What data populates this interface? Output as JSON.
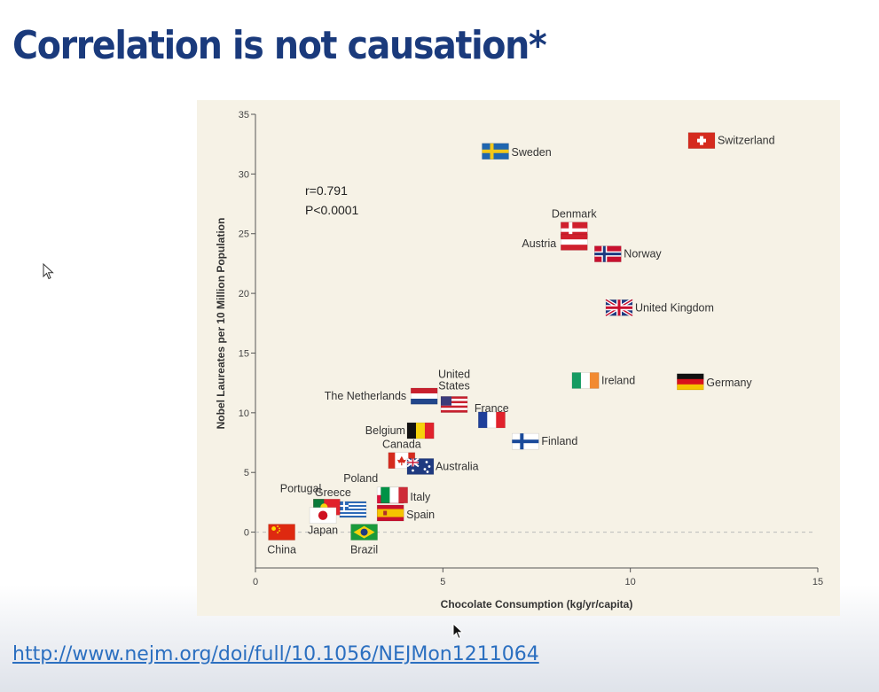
{
  "slide": {
    "title": "Correlation is not causation*",
    "link": "http://www.nejm.org/doi/full/10.1056/NEJMon1211064"
  },
  "chart_data": {
    "type": "scatter",
    "title": "",
    "xlabel": "Chocolate Consumption (kg/yr/capita)",
    "ylabel": "Nobel Laureates per 10 Million Population",
    "xlim": [
      0,
      15
    ],
    "ylim": [
      -3,
      35
    ],
    "xticks": [
      0,
      5,
      10,
      15
    ],
    "yticks": [
      0,
      5,
      10,
      15,
      20,
      25,
      30,
      35
    ],
    "reference_line_y": 0,
    "annotation": {
      "r": "r=0.791",
      "p": "P<0.0001"
    },
    "points": [
      {
        "country": "Sweden",
        "x": 6.4,
        "y": 31.9,
        "flag": "sweden"
      },
      {
        "country": "Switzerland",
        "x": 11.9,
        "y": 32.8,
        "flag": "switzerland"
      },
      {
        "country": "Denmark",
        "x": 8.5,
        "y": 25.3,
        "flag": "denmark"
      },
      {
        "country": "Austria",
        "x": 8.5,
        "y": 24.3,
        "flag": "austria"
      },
      {
        "country": "Norway",
        "x": 9.4,
        "y": 23.3,
        "flag": "norway"
      },
      {
        "country": "United Kingdom",
        "x": 9.7,
        "y": 18.8,
        "flag": "uk"
      },
      {
        "country": "Ireland",
        "x": 8.8,
        "y": 12.7,
        "flag": "ireland"
      },
      {
        "country": "Germany",
        "x": 11.6,
        "y": 12.6,
        "flag": "germany"
      },
      {
        "country": "The Netherlands",
        "x": 4.5,
        "y": 11.4,
        "flag": "netherlands"
      },
      {
        "country": "United States",
        "x": 5.3,
        "y": 10.7,
        "flag": "usa"
      },
      {
        "country": "France",
        "x": 6.3,
        "y": 9.4,
        "flag": "france"
      },
      {
        "country": "Belgium",
        "x": 4.4,
        "y": 8.5,
        "flag": "belgium"
      },
      {
        "country": "Finland",
        "x": 7.2,
        "y": 7.6,
        "flag": "finland"
      },
      {
        "country": "Canada",
        "x": 3.9,
        "y": 6.0,
        "flag": "canada"
      },
      {
        "country": "Australia",
        "x": 4.4,
        "y": 5.5,
        "flag": "australia"
      },
      {
        "country": "Poland",
        "x": 3.6,
        "y": 3.1,
        "flag": "poland"
      },
      {
        "country": "Italy",
        "x": 3.7,
        "y": 3.1,
        "flag": "italy"
      },
      {
        "country": "Greece",
        "x": 2.6,
        "y": 1.9,
        "flag": "greece"
      },
      {
        "country": "Portugal",
        "x": 1.9,
        "y": 2.1,
        "flag": "portugal"
      },
      {
        "country": "Spain",
        "x": 3.6,
        "y": 1.6,
        "flag": "spain"
      },
      {
        "country": "Japan",
        "x": 1.8,
        "y": 1.4,
        "flag": "japan"
      },
      {
        "country": "China",
        "x": 0.7,
        "y": 0.0,
        "flag": "china"
      },
      {
        "country": "Brazil",
        "x": 2.9,
        "y": 0.0,
        "flag": "brazil"
      }
    ]
  }
}
